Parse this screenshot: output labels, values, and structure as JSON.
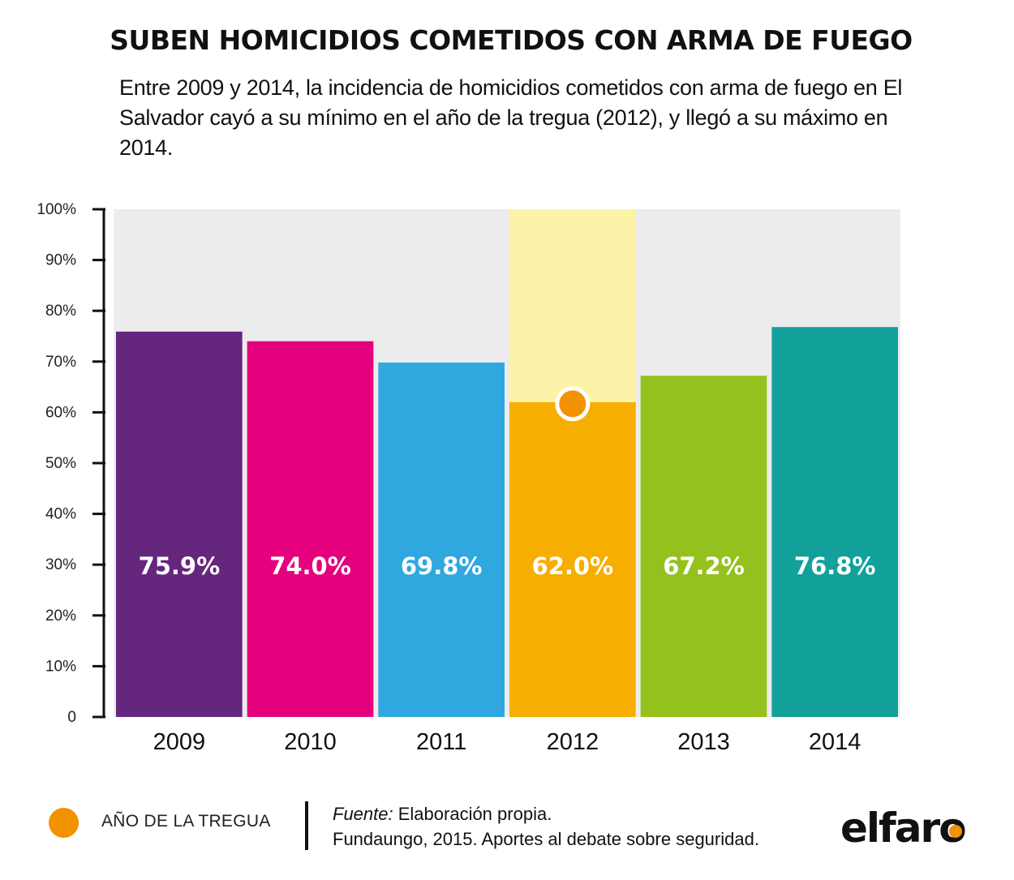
{
  "title": "SUBEN HOMICIDIOS COMETIDOS CON ARMA DE FUEGO",
  "subtitle": "Entre 2009 y 2014, la incidencia de homicidios cometidos con arma de fuego en El Salvador cayó a su mínimo en el año de la tregua (2012), y llegó a su máximo en 2014.",
  "chart_data": {
    "type": "bar",
    "categories": [
      "2009",
      "2010",
      "2011",
      "2012",
      "2013",
      "2014"
    ],
    "values": [
      75.9,
      74.0,
      69.8,
      62.0,
      67.2,
      76.8
    ],
    "value_labels": [
      "75.9%",
      "74.0%",
      "69.8%",
      "62.0%",
      "67.2%",
      "76.8%"
    ],
    "colors": [
      "#65267e",
      "#e5007d",
      "#2fa8e0",
      "#f6ae00",
      "#95c11f",
      "#12a19a"
    ],
    "highlight_category": "2012",
    "highlight_colors": {
      "band": "#fdf3a8",
      "marker": "#f39200"
    },
    "yticks": [
      "0",
      "10%",
      "20%",
      "30%",
      "40%",
      "50%",
      "60%",
      "70%",
      "80%",
      "90%",
      "100%"
    ],
    "ylim": [
      0,
      100
    ],
    "plot_background": "#ececec",
    "legend_position": "bottom-left"
  },
  "legend": {
    "label": "AÑO DE LA TREGUA",
    "color": "#f39200"
  },
  "source": {
    "label": "Fuente:",
    "line1": "Elaboración propia.",
    "line2": "Fundaungo, 2015. Aportes al debate sobre seguridad."
  },
  "logo": {
    "text": "elfaro"
  }
}
